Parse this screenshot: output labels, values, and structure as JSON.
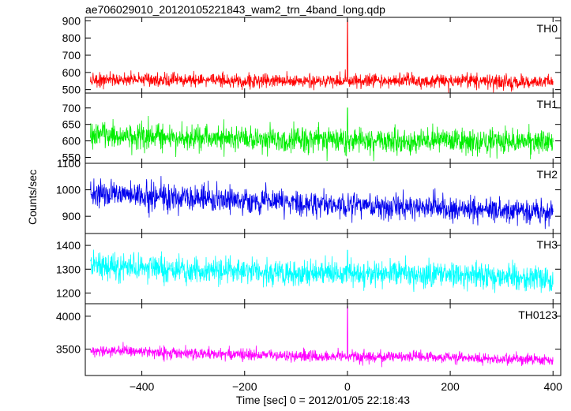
{
  "chart_data": {
    "type": "line",
    "title": "ae706029010_20120105221843_wam2_trn_4band_long.qdp",
    "xlabel": "Time [sec] 0 = 2012/01/05 22:18:43",
    "ylabel": "Counts/sec",
    "x_ticks": [
      "−400",
      "−200",
      "0",
      "200",
      "400"
    ],
    "xlim": [
      -510,
      415
    ],
    "grid": false,
    "panels": [
      {
        "label": "TH0",
        "color": "#ff0000",
        "ylim": [
          480,
          920
        ],
        "yticks": [
          "500",
          "600",
          "700",
          "800",
          "900"
        ],
        "approx_points": [
          [
            -500,
            555
          ],
          [
            -400,
            560
          ],
          [
            -300,
            555
          ],
          [
            -200,
            552
          ],
          [
            -100,
            550
          ],
          [
            0,
            905
          ],
          [
            100,
            548
          ],
          [
            200,
            548
          ],
          [
            300,
            545
          ],
          [
            400,
            545
          ]
        ]
      },
      {
        "label": "TH1",
        "color": "#00ee00",
        "ylim": [
          532,
          745
        ],
        "yticks": [
          "550",
          "600",
          "650",
          "700"
        ],
        "approx_points": [
          [
            -500,
            622
          ],
          [
            -400,
            615
          ],
          [
            -300,
            610
          ],
          [
            -200,
            607
          ],
          [
            -100,
            603
          ],
          [
            0,
            700
          ],
          [
            100,
            600
          ],
          [
            200,
            598
          ],
          [
            300,
            597
          ],
          [
            400,
            595
          ]
        ]
      },
      {
        "label": "TH2",
        "color": "#0000ee",
        "ylim": [
          835,
          1100
        ],
        "yticks": [
          "900",
          "1000",
          "1100"
        ],
        "approx_points": [
          [
            -500,
            985
          ],
          [
            -400,
            980
          ],
          [
            -300,
            968
          ],
          [
            -200,
            960
          ],
          [
            -100,
            950
          ],
          [
            0,
            940
          ],
          [
            100,
            935
          ],
          [
            200,
            930
          ],
          [
            300,
            925
          ],
          [
            400,
            915
          ]
        ]
      },
      {
        "label": "TH3",
        "color": "#00ffff",
        "ylim": [
          1155,
          1450
        ],
        "yticks": [
          "1200",
          "1300",
          "1400"
        ],
        "approx_points": [
          [
            -500,
            1315
          ],
          [
            -400,
            1305
          ],
          [
            -300,
            1295
          ],
          [
            -200,
            1290
          ],
          [
            -100,
            1285
          ],
          [
            0,
            1380
          ],
          [
            100,
            1280
          ],
          [
            200,
            1275
          ],
          [
            300,
            1270
          ],
          [
            400,
            1250
          ]
        ]
      },
      {
        "label": "TH0123",
        "color": "#ff00ff",
        "ylim": [
          3100,
          4190
        ],
        "yticks": [
          "3500",
          "4000"
        ],
        "approx_points": [
          [
            -500,
            3480
          ],
          [
            -400,
            3460
          ],
          [
            -300,
            3430
          ],
          [
            -200,
            3420
          ],
          [
            -100,
            3400
          ],
          [
            0,
            4150
          ],
          [
            100,
            3380
          ],
          [
            200,
            3370
          ],
          [
            300,
            3350
          ],
          [
            400,
            3330
          ]
        ]
      }
    ]
  }
}
